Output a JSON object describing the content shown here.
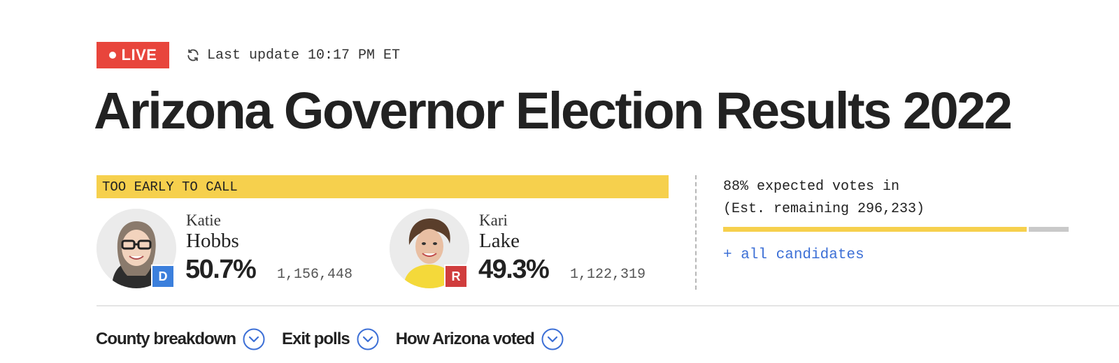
{
  "status": {
    "live_label": "LIVE",
    "last_update": "Last update 10:17 PM ET",
    "icons": {
      "live_dot": "live-dot-icon",
      "refresh": "refresh-icon"
    }
  },
  "title": "Arizona Governor Election Results 2022",
  "race": {
    "call_status": "TOO EARLY TO CALL",
    "candidates": [
      {
        "first": "Katie",
        "last": "Hobbs",
        "party": "D",
        "pct": "50.7%",
        "votes": "1,156,448",
        "party_color": "#3b7fdc"
      },
      {
        "first": "Kari",
        "last": "Lake",
        "party": "R",
        "pct": "49.3%",
        "votes": "1,122,319",
        "party_color": "#d03d3d"
      }
    ]
  },
  "reporting": {
    "expected_line1": "88% expected votes in",
    "expected_line2": "(Est. remaining 296,233)",
    "progress_pct": 88,
    "all_candidates_label": "+ all candidates"
  },
  "nav": {
    "items": [
      {
        "label": "County breakdown",
        "icon": "chevron-down-icon"
      },
      {
        "label": "Exit polls",
        "icon": "chevron-down-icon"
      },
      {
        "label": "How Arizona voted",
        "icon": "chevron-down-icon"
      }
    ]
  },
  "colors": {
    "live": "#e8453c",
    "banner": "#f6d04d",
    "link": "#3c6fd6",
    "dem": "#3b7fdc",
    "rep": "#d03d3d"
  }
}
